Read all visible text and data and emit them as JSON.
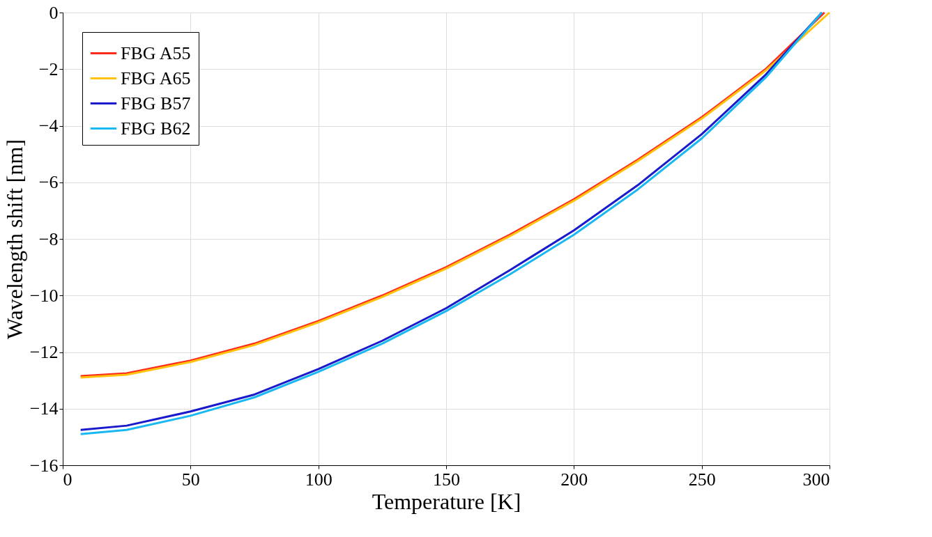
{
  "chart_data": {
    "type": "line",
    "xlabel": "Temperature   [K]",
    "ylabel": "Wavelength shift   [nm]",
    "xlim": [
      0,
      300
    ],
    "ylim": [
      -16,
      0
    ],
    "xticks": [
      0,
      50,
      100,
      150,
      200,
      250,
      300
    ],
    "yticks": [
      -16,
      -14,
      -12,
      -10,
      -8,
      -6,
      -4,
      -2,
      0
    ],
    "grid": true,
    "legend": "top left",
    "marker": "none",
    "line_style": "solid",
    "series": [
      {
        "name": "FBG A55",
        "color": "#ff2a1a",
        "x": [
          7,
          25,
          50,
          75,
          100,
          125,
          150,
          175,
          200,
          225,
          250,
          275,
          298
        ],
        "values": [
          -12.85,
          -12.75,
          -12.3,
          -11.7,
          -10.9,
          -10.0,
          -9.0,
          -7.85,
          -6.6,
          -5.2,
          -3.7,
          -2.0,
          0
        ]
      },
      {
        "name": "FBG A65",
        "color": "#ffc20e",
        "x": [
          7,
          25,
          50,
          75,
          100,
          125,
          150,
          175,
          200,
          225,
          250,
          275,
          300
        ],
        "values": [
          -12.9,
          -12.8,
          -12.35,
          -11.75,
          -10.95,
          -10.05,
          -9.05,
          -7.9,
          -6.65,
          -5.25,
          -3.75,
          -2.05,
          0
        ]
      },
      {
        "name": "FBG B57",
        "color": "#1a1acc",
        "x": [
          7,
          25,
          50,
          75,
          100,
          125,
          150,
          175,
          200,
          225,
          250,
          275,
          297
        ],
        "values": [
          -14.75,
          -14.6,
          -14.1,
          -13.5,
          -12.6,
          -11.6,
          -10.45,
          -9.1,
          -7.7,
          -6.1,
          -4.3,
          -2.2,
          0
        ]
      },
      {
        "name": "FBG B62",
        "color": "#1ab8f0",
        "x": [
          7,
          25,
          50,
          75,
          100,
          125,
          150,
          175,
          200,
          225,
          250,
          275,
          297
        ],
        "values": [
          -14.9,
          -14.75,
          -14.25,
          -13.6,
          -12.7,
          -11.7,
          -10.55,
          -9.25,
          -7.85,
          -6.25,
          -4.45,
          -2.3,
          0
        ]
      }
    ]
  }
}
